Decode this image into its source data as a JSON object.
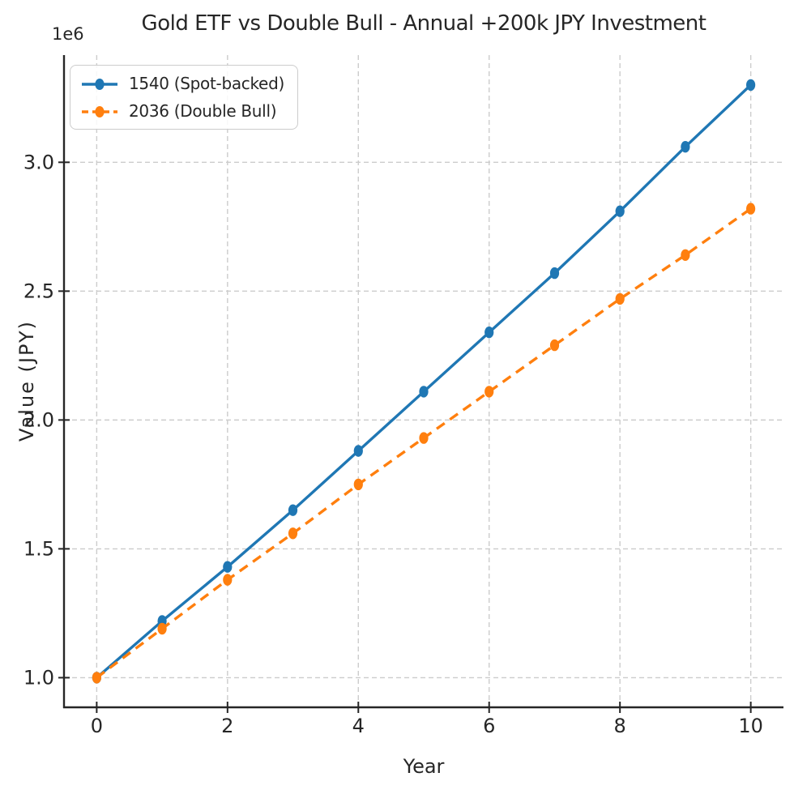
{
  "figure": {
    "background": "#ffffff",
    "text_color": "#262626",
    "grid_color": "#cccccc",
    "spine_color": "#262626"
  },
  "chart_data": {
    "type": "line",
    "title": "Gold ETF vs Double Bull - Annual +200k JPY Investment",
    "xlabel": "Year",
    "ylabel": "Value (JPY)",
    "y_axis_multiplier_label": "1e6",
    "x": [
      0,
      1,
      2,
      3,
      4,
      5,
      6,
      7,
      8,
      9,
      10
    ],
    "series": [
      {
        "name": "1540 (Spot-backed)",
        "color": "#1f77b4",
        "line_style": "solid",
        "marker": "circle",
        "values_jpy": [
          1000000,
          1220000,
          1430000,
          1650000,
          1880000,
          2110000,
          2340000,
          2570000,
          2810000,
          3060000,
          3300000
        ]
      },
      {
        "name": "2036 (Double Bull)",
        "color": "#ff7f0e",
        "line_style": "dashed",
        "marker": "circle",
        "values_jpy": [
          1000000,
          1190000,
          1380000,
          1560000,
          1750000,
          1930000,
          2110000,
          2290000,
          2470000,
          2640000,
          2820000
        ]
      }
    ],
    "xlim": [
      -0.5,
      10.5
    ],
    "ylim_jpy": [
      885000,
      3416000
    ],
    "xticks": [
      0,
      2,
      4,
      6,
      8,
      10
    ],
    "xtick_labels": [
      "0",
      "2",
      "4",
      "6",
      "8",
      "10"
    ],
    "yticks_jpy": [
      1000000,
      1500000,
      2000000,
      2500000,
      3000000
    ],
    "ytick_labels": [
      "1.0",
      "1.5",
      "2.0",
      "2.5",
      "3.0"
    ],
    "grid": true,
    "grid_style": "dashed",
    "legend": {
      "position": "upper-left",
      "entries": [
        "1540 (Spot-backed)",
        "2036 (Double Bull)"
      ]
    }
  }
}
